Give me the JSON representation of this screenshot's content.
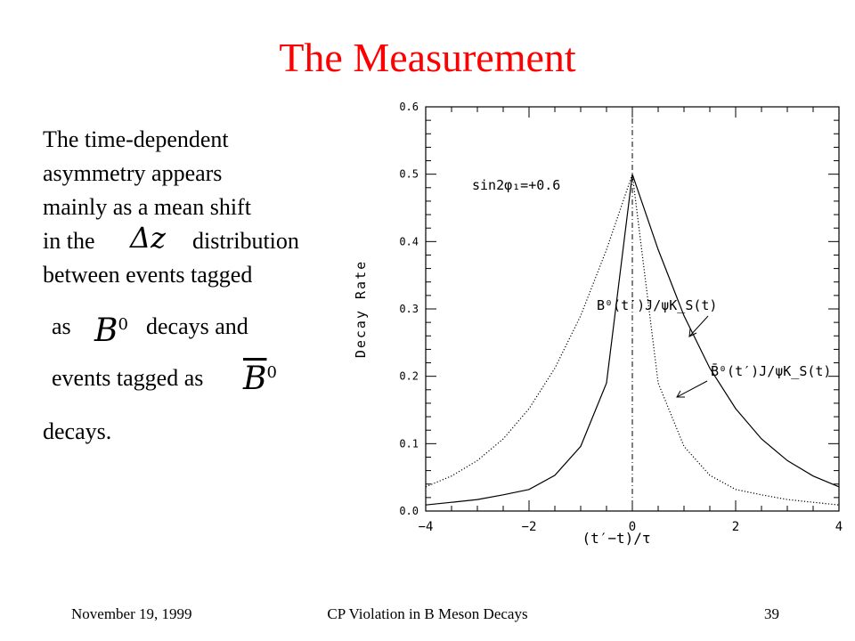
{
  "slide": {
    "title": "The Measurement",
    "body_lines": [
      "The time-dependent",
      "asymmetry appears",
      "mainly as a mean shift",
      "in the",
      "distribution",
      "between events tagged",
      "as",
      "decays and",
      "events tagged as",
      "decays."
    ],
    "math": {
      "delta_z": "Δz",
      "b0": "B",
      "b0_sup": "0",
      "b0bar": "B",
      "b0bar_sup": "0"
    }
  },
  "footer": {
    "date": "November 19, 1999",
    "talk_title": "CP Violation in B Meson Decays",
    "page_number": "39"
  },
  "chart_data": {
    "type": "line",
    "title": "",
    "xlabel": "(t′−t)/τ",
    "ylabel": "Decay Rate",
    "xlim": [
      -4,
      4
    ],
    "ylim": [
      0,
      0.6
    ],
    "x_ticks": [
      "−4",
      "−2",
      "0",
      "2",
      "4"
    ],
    "y_ticks": [
      "0.0",
      "0.1",
      "0.2",
      "0.3",
      "0.4",
      "0.5",
      "0.6"
    ],
    "annotation": "sin2φ₁=+0.6",
    "series": [
      {
        "name": "B⁰(t′)J/ψK_S(t)",
        "style": "solid",
        "x": [
          -4,
          -3.5,
          -3,
          -2.5,
          -2,
          -1.5,
          -1,
          -0.5,
          0,
          0.5,
          1,
          1.5,
          2,
          2.5,
          3,
          3.5,
          4
        ],
        "y": [
          0.009,
          0.013,
          0.017,
          0.024,
          0.032,
          0.053,
          0.096,
          0.19,
          0.5,
          0.388,
          0.29,
          0.212,
          0.152,
          0.107,
          0.075,
          0.052,
          0.036
        ]
      },
      {
        "name": "B̄⁰(t′)J/ψK_S(t)",
        "style": "dotted",
        "x": [
          -4,
          -3.5,
          -3,
          -2.5,
          -2,
          -1.5,
          -1,
          -0.5,
          0,
          0.5,
          1,
          1.5,
          2,
          2.5,
          3,
          3.5,
          4
        ],
        "y": [
          0.036,
          0.052,
          0.075,
          0.107,
          0.152,
          0.212,
          0.29,
          0.388,
          0.5,
          0.19,
          0.096,
          0.053,
          0.032,
          0.024,
          0.017,
          0.013,
          0.009
        ]
      }
    ]
  }
}
